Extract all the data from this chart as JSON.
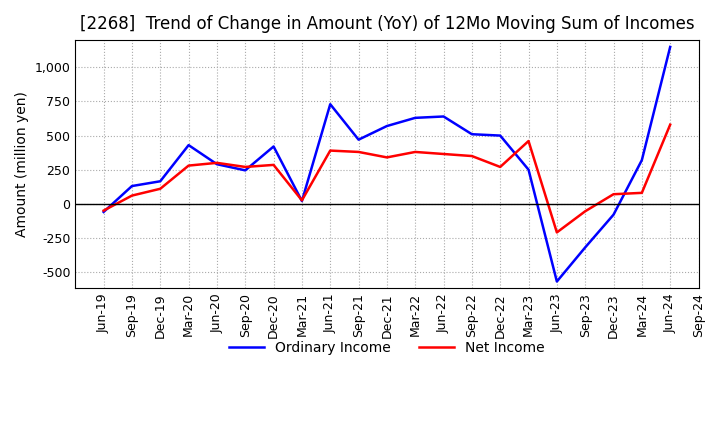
{
  "title": "[2268]  Trend of Change in Amount (YoY) of 12Mo Moving Sum of Incomes",
  "ylabel": "Amount (million yen)",
  "ylim": [
    -620,
    1200
  ],
  "yticks": [
    -500,
    -250,
    0,
    250,
    500,
    750,
    1000
  ],
  "x_labels": [
    "Jun-19",
    "Sep-19",
    "Dec-19",
    "Mar-20",
    "Jun-20",
    "Sep-20",
    "Dec-20",
    "Mar-21",
    "Jun-21",
    "Sep-21",
    "Dec-21",
    "Mar-22",
    "Jun-22",
    "Sep-22",
    "Dec-22",
    "Mar-23",
    "Jun-23",
    "Sep-23",
    "Dec-23",
    "Mar-24",
    "Jun-24",
    "Sep-24"
  ],
  "ordinary_income": [
    -60,
    130,
    165,
    430,
    290,
    245,
    420,
    20,
    730,
    470,
    570,
    630,
    640,
    510,
    500,
    250,
    -570,
    -320,
    -80,
    320,
    1150,
    null
  ],
  "net_income": [
    -50,
    60,
    110,
    280,
    300,
    270,
    285,
    25,
    390,
    380,
    340,
    380,
    365,
    350,
    270,
    460,
    -210,
    -55,
    70,
    80,
    580,
    null
  ],
  "ordinary_color": "#0000ff",
  "net_color": "#ff0000",
  "grid_color": "#aaaaaa",
  "background_color": "#ffffff",
  "title_fontsize": 12,
  "label_fontsize": 10,
  "tick_fontsize": 9
}
